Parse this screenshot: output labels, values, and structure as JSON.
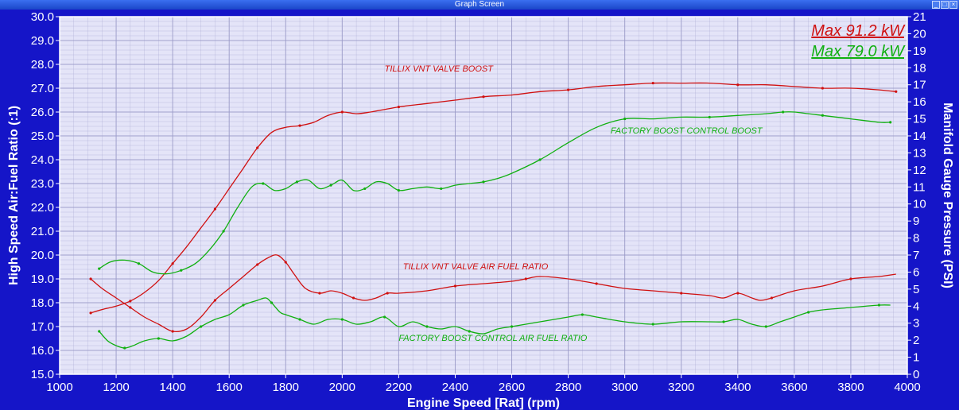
{
  "window": {
    "title": "Graph Screen"
  },
  "chart_data": {
    "type": "line",
    "xlabel": "Engine Speed [Rat] (rpm)",
    "ylabel_left": "High Speed Air:Fuel Ratio (:1)",
    "ylabel_right": "Manifold Gauge Pressure (PSI)",
    "xlim": [
      1000,
      4000
    ],
    "ylim_left": [
      15.0,
      30.0
    ],
    "ylim_right": [
      0,
      21
    ],
    "x_ticks": [
      "1000",
      "1200",
      "1400",
      "1600",
      "1800",
      "2000",
      "2200",
      "2400",
      "2600",
      "2800",
      "3000",
      "3200",
      "3400",
      "3600",
      "3800",
      "4000"
    ],
    "y_left_ticks": [
      "15.0",
      "16.0",
      "17.0",
      "18.0",
      "19.0",
      "20.0",
      "21.0",
      "22.0",
      "23.0",
      "24.0",
      "25.0",
      "26.0",
      "27.0",
      "28.0",
      "29.0",
      "30.0"
    ],
    "y_right_ticks": [
      "0",
      "1",
      "2",
      "3",
      "4",
      "5",
      "6",
      "7",
      "8",
      "9",
      "10",
      "11",
      "12",
      "13",
      "14",
      "15",
      "16",
      "17",
      "18",
      "19",
      "20",
      "21"
    ],
    "grid": true,
    "max_labels": [
      {
        "text": "Max 91.2 kW",
        "color": "#d01010"
      },
      {
        "text": "Max 79.0 kW",
        "color": "#10b010"
      }
    ],
    "colors": {
      "plot_bg": "#e4e4f8",
      "grid": "#9a9ac8",
      "frame_bg": "#1515c8",
      "red": "#d01010",
      "green": "#10b010"
    },
    "series": [
      {
        "name": "TILLIX VNT VALVE BOOST",
        "axis": "right",
        "color": "#d01010",
        "x": [
          1110,
          1150,
          1200,
          1250,
          1300,
          1350,
          1400,
          1450,
          1500,
          1550,
          1600,
          1650,
          1700,
          1750,
          1800,
          1850,
          1900,
          1950,
          2000,
          2050,
          2100,
          2200,
          2300,
          2400,
          2500,
          2600,
          2700,
          2800,
          2900,
          3000,
          3100,
          3200,
          3300,
          3400,
          3500,
          3600,
          3700,
          3800,
          3900,
          3960
        ],
        "values": [
          3.6,
          3.8,
          4.0,
          4.3,
          4.8,
          5.5,
          6.5,
          7.5,
          8.6,
          9.7,
          10.9,
          12.1,
          13.3,
          14.2,
          14.5,
          14.6,
          14.8,
          15.2,
          15.4,
          15.3,
          15.4,
          15.7,
          15.9,
          16.1,
          16.3,
          16.4,
          16.6,
          16.7,
          16.9,
          17.0,
          17.1,
          17.1,
          17.1,
          17.0,
          17.0,
          16.9,
          16.8,
          16.8,
          16.7,
          16.6
        ]
      },
      {
        "name": "FACTORY BOOST CONTROL BOOST",
        "axis": "right",
        "color": "#10b010",
        "x": [
          1140,
          1180,
          1230,
          1280,
          1330,
          1380,
          1430,
          1480,
          1530,
          1580,
          1630,
          1680,
          1720,
          1760,
          1800,
          1840,
          1880,
          1920,
          1960,
          2000,
          2040,
          2080,
          2120,
          2160,
          2200,
          2250,
          2300,
          2350,
          2400,
          2450,
          2500,
          2550,
          2600,
          2700,
          2800,
          2900,
          3000,
          3100,
          3200,
          3300,
          3400,
          3500,
          3560,
          3600,
          3650,
          3700,
          3800,
          3900,
          3940
        ],
        "values": [
          6.2,
          6.6,
          6.7,
          6.5,
          6.0,
          5.9,
          6.1,
          6.5,
          7.3,
          8.4,
          9.8,
          11.0,
          11.2,
          10.8,
          10.9,
          11.3,
          11.4,
          10.9,
          11.1,
          11.4,
          10.8,
          10.9,
          11.3,
          11.2,
          10.8,
          10.9,
          11.0,
          10.9,
          11.1,
          11.2,
          11.3,
          11.5,
          11.8,
          12.6,
          13.6,
          14.5,
          15.0,
          15.0,
          15.1,
          15.1,
          15.2,
          15.3,
          15.4,
          15.4,
          15.3,
          15.2,
          15.0,
          14.8,
          14.8
        ]
      },
      {
        "name": "TILLIX VNT VALVE AIR FUEL RATIO",
        "axis": "left",
        "color": "#d01010",
        "x": [
          1110,
          1150,
          1200,
          1250,
          1300,
          1350,
          1400,
          1450,
          1500,
          1550,
          1600,
          1650,
          1700,
          1740,
          1770,
          1800,
          1830,
          1870,
          1920,
          1960,
          2000,
          2040,
          2080,
          2120,
          2160,
          2200,
          2300,
          2400,
          2500,
          2600,
          2650,
          2700,
          2800,
          2900,
          3000,
          3100,
          3200,
          3300,
          3350,
          3400,
          3450,
          3480,
          3520,
          3600,
          3700,
          3800,
          3900,
          3960
        ],
        "values": [
          19.0,
          18.6,
          18.2,
          17.8,
          17.4,
          17.1,
          16.8,
          16.9,
          17.4,
          18.1,
          18.6,
          19.1,
          19.6,
          19.9,
          20.0,
          19.7,
          19.2,
          18.6,
          18.4,
          18.5,
          18.4,
          18.2,
          18.1,
          18.2,
          18.4,
          18.4,
          18.5,
          18.7,
          18.8,
          18.9,
          19.0,
          19.1,
          19.0,
          18.8,
          18.6,
          18.5,
          18.4,
          18.3,
          18.2,
          18.4,
          18.2,
          18.1,
          18.2,
          18.5,
          18.7,
          19.0,
          19.1,
          19.2
        ]
      },
      {
        "name": "FACTORY BOOST CONTROL AIR FUEL RATIO",
        "axis": "left",
        "color": "#10b010",
        "x": [
          1140,
          1170,
          1200,
          1230,
          1260,
          1300,
          1350,
          1400,
          1450,
          1500,
          1550,
          1600,
          1650,
          1700,
          1730,
          1750,
          1780,
          1800,
          1850,
          1900,
          1950,
          2000,
          2050,
          2100,
          2150,
          2200,
          2250,
          2300,
          2350,
          2400,
          2450,
          2500,
          2550,
          2600,
          2700,
          2800,
          2850,
          2900,
          3000,
          3100,
          3200,
          3300,
          3350,
          3400,
          3450,
          3500,
          3550,
          3600,
          3650,
          3700,
          3800,
          3900,
          3940
        ],
        "values": [
          16.8,
          16.4,
          16.2,
          16.1,
          16.2,
          16.4,
          16.5,
          16.4,
          16.6,
          17.0,
          17.3,
          17.5,
          17.9,
          18.1,
          18.2,
          18.0,
          17.6,
          17.5,
          17.3,
          17.1,
          17.3,
          17.3,
          17.1,
          17.2,
          17.4,
          17.0,
          17.2,
          17.0,
          16.9,
          17.0,
          16.8,
          16.7,
          16.9,
          17.0,
          17.2,
          17.4,
          17.5,
          17.4,
          17.2,
          17.1,
          17.2,
          17.2,
          17.2,
          17.3,
          17.1,
          17.0,
          17.2,
          17.4,
          17.6,
          17.7,
          17.8,
          17.9,
          17.9
        ]
      }
    ],
    "annotations": [
      {
        "text": "TILLIX VNT VALVE BOOST",
        "x": 2150,
        "y_left": 27.7,
        "color": "#d01010"
      },
      {
        "text": "FACTORY BOOST CONTROL BOOST",
        "x": 2950,
        "y_left": 25.1,
        "color": "#10b010"
      },
      {
        "text": "TILLIX VNT VALVE AIR FUEL RATIO",
        "x": 2215,
        "y_left": 19.4,
        "color": "#d01010"
      },
      {
        "text": "FACTORY BOOST CONTROL AIR FUEL RATIO",
        "x": 2200,
        "y_left": 16.4,
        "color": "#10b010"
      }
    ]
  }
}
